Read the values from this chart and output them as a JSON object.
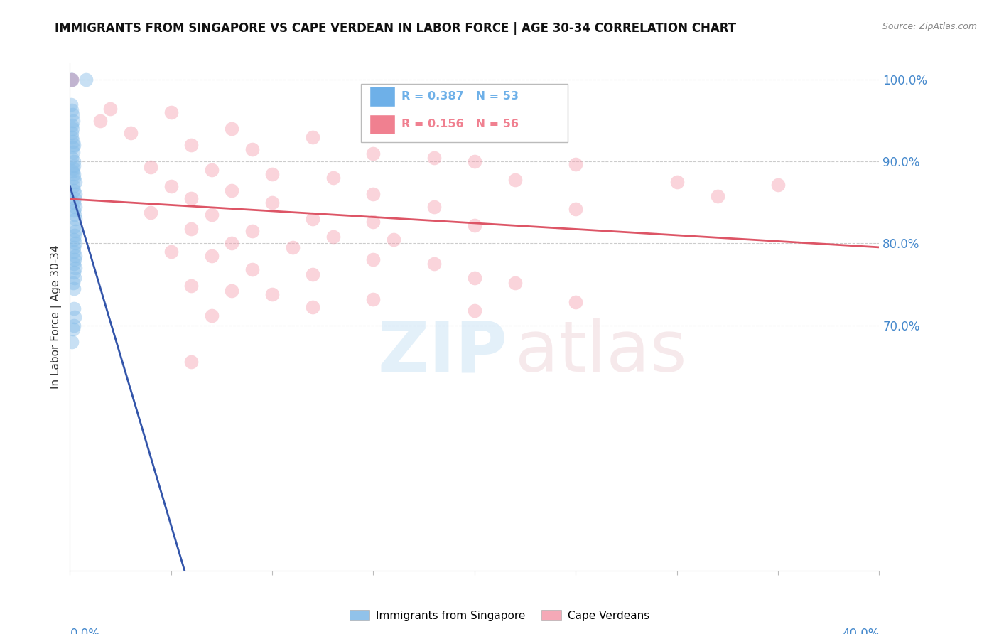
{
  "title": "IMMIGRANTS FROM SINGAPORE VS CAPE VERDEAN IN LABOR FORCE | AGE 30-34 CORRELATION CHART",
  "source": "Source: ZipAtlas.com",
  "ylabel": "In Labor Force | Age 30-34",
  "xmin": 0.0,
  "xmax": 0.4,
  "ymin": 0.4,
  "ymax": 1.02,
  "yticks": [
    0.7,
    0.8,
    0.9,
    1.0
  ],
  "ytick_labels": [
    "70.0%",
    "80.0%",
    "90.0%",
    "100.0%"
  ],
  "legend_entries": [
    {
      "label": "R = 0.387   N = 53",
      "color": "#6eb0e8"
    },
    {
      "label": "R = 0.156   N = 56",
      "color": "#f08090"
    }
  ],
  "legend_label_singapore": "Immigrants from Singapore",
  "legend_label_cape": "Cape Verdeans",
  "singapore_color": "#85bce8",
  "cape_color": "#f4a0b0",
  "singapore_line_color": "#3355aa",
  "cape_line_color": "#dd5566",
  "singapore_points": [
    [
      0.0005,
      1.0
    ],
    [
      0.0008,
      1.0
    ],
    [
      0.001,
      1.0
    ],
    [
      0.008,
      1.0
    ],
    [
      0.0005,
      0.97
    ],
    [
      0.001,
      0.963
    ],
    [
      0.0012,
      0.958
    ],
    [
      0.0015,
      0.95
    ],
    [
      0.001,
      0.945
    ],
    [
      0.0012,
      0.94
    ],
    [
      0.0008,
      0.935
    ],
    [
      0.001,
      0.93
    ],
    [
      0.0015,
      0.925
    ],
    [
      0.002,
      0.92
    ],
    [
      0.0012,
      0.918
    ],
    [
      0.0015,
      0.912
    ],
    [
      0.001,
      0.905
    ],
    [
      0.0018,
      0.9
    ],
    [
      0.002,
      0.895
    ],
    [
      0.0015,
      0.892
    ],
    [
      0.0012,
      0.888
    ],
    [
      0.002,
      0.885
    ],
    [
      0.0018,
      0.88
    ],
    [
      0.0025,
      0.875
    ],
    [
      0.0015,
      0.87
    ],
    [
      0.002,
      0.865
    ],
    [
      0.0025,
      0.86
    ],
    [
      0.0022,
      0.855
    ],
    [
      0.0018,
      0.85
    ],
    [
      0.0025,
      0.845
    ],
    [
      0.002,
      0.84
    ],
    [
      0.0022,
      0.835
    ],
    [
      0.0025,
      0.83
    ],
    [
      0.002,
      0.82
    ],
    [
      0.0025,
      0.815
    ],
    [
      0.0022,
      0.81
    ],
    [
      0.002,
      0.805
    ],
    [
      0.0025,
      0.8
    ],
    [
      0.0018,
      0.795
    ],
    [
      0.002,
      0.79
    ],
    [
      0.0025,
      0.785
    ],
    [
      0.0022,
      0.78
    ],
    [
      0.0018,
      0.775
    ],
    [
      0.0025,
      0.77
    ],
    [
      0.002,
      0.765
    ],
    [
      0.0022,
      0.758
    ],
    [
      0.0015,
      0.752
    ],
    [
      0.0018,
      0.745
    ],
    [
      0.002,
      0.72
    ],
    [
      0.0022,
      0.71
    ],
    [
      0.0018,
      0.7
    ],
    [
      0.0015,
      0.695
    ],
    [
      0.001,
      0.68
    ]
  ],
  "cape_points": [
    [
      0.001,
      1.0
    ],
    [
      0.02,
      0.965
    ],
    [
      0.05,
      0.96
    ],
    [
      0.015,
      0.95
    ],
    [
      0.08,
      0.94
    ],
    [
      0.03,
      0.935
    ],
    [
      0.12,
      0.93
    ],
    [
      0.06,
      0.92
    ],
    [
      0.09,
      0.915
    ],
    [
      0.15,
      0.91
    ],
    [
      0.18,
      0.905
    ],
    [
      0.2,
      0.9
    ],
    [
      0.25,
      0.897
    ],
    [
      0.04,
      0.893
    ],
    [
      0.07,
      0.89
    ],
    [
      0.1,
      0.885
    ],
    [
      0.13,
      0.88
    ],
    [
      0.22,
      0.878
    ],
    [
      0.3,
      0.875
    ],
    [
      0.35,
      0.872
    ],
    [
      0.05,
      0.87
    ],
    [
      0.08,
      0.865
    ],
    [
      0.15,
      0.86
    ],
    [
      0.32,
      0.858
    ],
    [
      0.06,
      0.855
    ],
    [
      0.1,
      0.85
    ],
    [
      0.18,
      0.845
    ],
    [
      0.25,
      0.842
    ],
    [
      0.04,
      0.838
    ],
    [
      0.07,
      0.835
    ],
    [
      0.12,
      0.83
    ],
    [
      0.15,
      0.826
    ],
    [
      0.2,
      0.822
    ],
    [
      0.06,
      0.818
    ],
    [
      0.09,
      0.815
    ],
    [
      0.13,
      0.808
    ],
    [
      0.16,
      0.805
    ],
    [
      0.08,
      0.8
    ],
    [
      0.11,
      0.795
    ],
    [
      0.05,
      0.79
    ],
    [
      0.07,
      0.785
    ],
    [
      0.15,
      0.78
    ],
    [
      0.18,
      0.775
    ],
    [
      0.09,
      0.768
    ],
    [
      0.12,
      0.762
    ],
    [
      0.2,
      0.758
    ],
    [
      0.22,
      0.752
    ],
    [
      0.06,
      0.748
    ],
    [
      0.08,
      0.742
    ],
    [
      0.1,
      0.738
    ],
    [
      0.15,
      0.732
    ],
    [
      0.25,
      0.728
    ],
    [
      0.12,
      0.722
    ],
    [
      0.2,
      0.718
    ],
    [
      0.07,
      0.712
    ],
    [
      0.06,
      0.655
    ]
  ]
}
